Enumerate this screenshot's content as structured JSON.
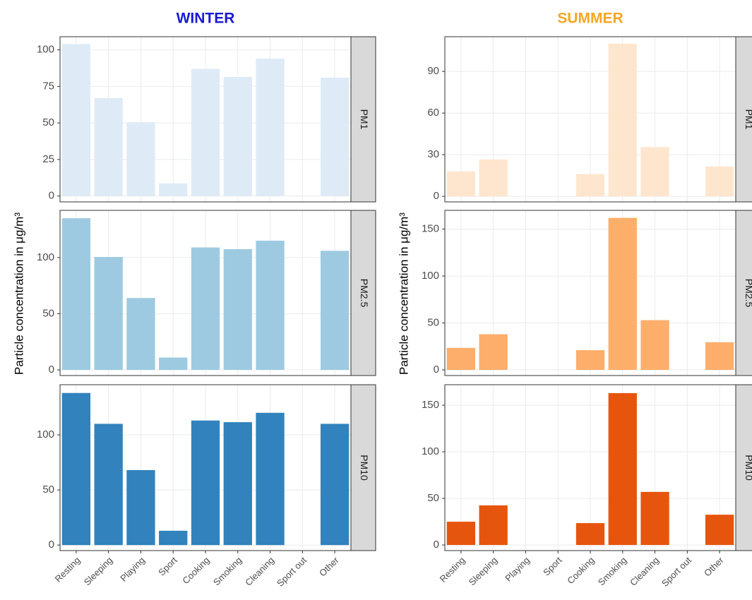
{
  "chart_data": [
    {
      "type": "bar",
      "title": "WINTER",
      "title_color": "#1a1ad6",
      "ylabel": "Particle concentration in μg/m³",
      "categories": [
        "Resting",
        "Sleeping",
        "Playing",
        "Sport",
        "Cooking",
        "Smoking",
        "Cleaning",
        "Sport out",
        "Other"
      ],
      "grid": true,
      "facets": [
        {
          "label": "PM1",
          "color": "#deebf7",
          "values": [
            104,
            67,
            50.5,
            8.7,
            87,
            81.5,
            94,
            null,
            81
          ],
          "ylim": [
            -4,
            109
          ],
          "yticks": [
            0,
            25,
            50,
            75,
            100
          ]
        },
        {
          "label": "PM2.5",
          "color": "#9ecae1",
          "values": [
            135,
            100.5,
            64,
            11,
            109,
            107.5,
            115,
            null,
            106
          ],
          "ylim": [
            -5,
            142
          ],
          "yticks": [
            0,
            50,
            100
          ]
        },
        {
          "label": "PM10",
          "color": "#3182bd",
          "values": [
            138,
            110,
            68,
            13,
            113,
            111.5,
            120,
            null,
            110
          ],
          "ylim": [
            -5,
            145.5
          ],
          "yticks": [
            0,
            50,
            100
          ]
        }
      ]
    },
    {
      "type": "bar",
      "title": "SUMMER",
      "title_color": "#f5a623",
      "ylabel": "Particle concentration in μg/m³",
      "categories": [
        "Resting",
        "Sleeping",
        "Playing",
        "Sport",
        "Cooking",
        "Smoking",
        "Cleaning",
        "Sport out",
        "Other"
      ],
      "grid": true,
      "facets": [
        {
          "label": "PM1",
          "color": "#fee6ce",
          "values": [
            18,
            26.5,
            null,
            null,
            16,
            110,
            35.5,
            null,
            21.5
          ],
          "ylim": [
            -4,
            115
          ],
          "yticks": [
            0,
            30,
            60,
            90
          ]
        },
        {
          "label": "PM2.5",
          "color": "#fdae6b",
          "values": [
            23.5,
            38,
            null,
            null,
            21,
            162,
            53,
            null,
            29.5
          ],
          "ylim": [
            -6,
            170
          ],
          "yticks": [
            0,
            50,
            100,
            150
          ]
        },
        {
          "label": "PM10",
          "color": "#e6550d",
          "values": [
            25,
            42.5,
            null,
            null,
            23.5,
            163,
            57,
            null,
            32.5
          ],
          "ylim": [
            -6,
            172
          ],
          "yticks": [
            0,
            50,
            100,
            150
          ]
        }
      ]
    }
  ]
}
